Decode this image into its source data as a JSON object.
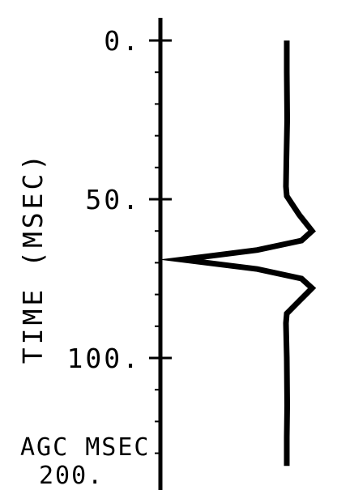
{
  "chart_data": {
    "type": "line",
    "title": "",
    "ylabel": "TIME (MSEC)",
    "xlabel": "",
    "y_ticks": [
      {
        "value": 0,
        "label": "0."
      },
      {
        "value": 50,
        "label": "50."
      },
      {
        "value": 100,
        "label": "100."
      }
    ],
    "ylim": [
      0,
      134
    ],
    "y_inverted": true,
    "grid": false,
    "agc": {
      "label": "AGC MSEC",
      "value": "200."
    },
    "series": [
      {
        "trace": "wavelet",
        "x": [
          0.0,
          0.0,
          0.01,
          -0.01,
          -0.02,
          0.0,
          0.3,
          0.6,
          0.35,
          -0.7,
          -2.5,
          -0.7,
          0.35,
          0.6,
          0.3,
          0.0,
          -0.02,
          0.0,
          0.01,
          0.0,
          0.0
        ],
        "y": [
          0,
          10,
          25,
          38,
          46,
          49,
          55,
          60,
          63,
          66,
          69,
          72,
          75,
          78,
          82,
          86,
          89,
          100,
          115,
          125,
          134
        ]
      }
    ],
    "colors": {
      "line": "#000000",
      "background": "#ffffff"
    }
  }
}
